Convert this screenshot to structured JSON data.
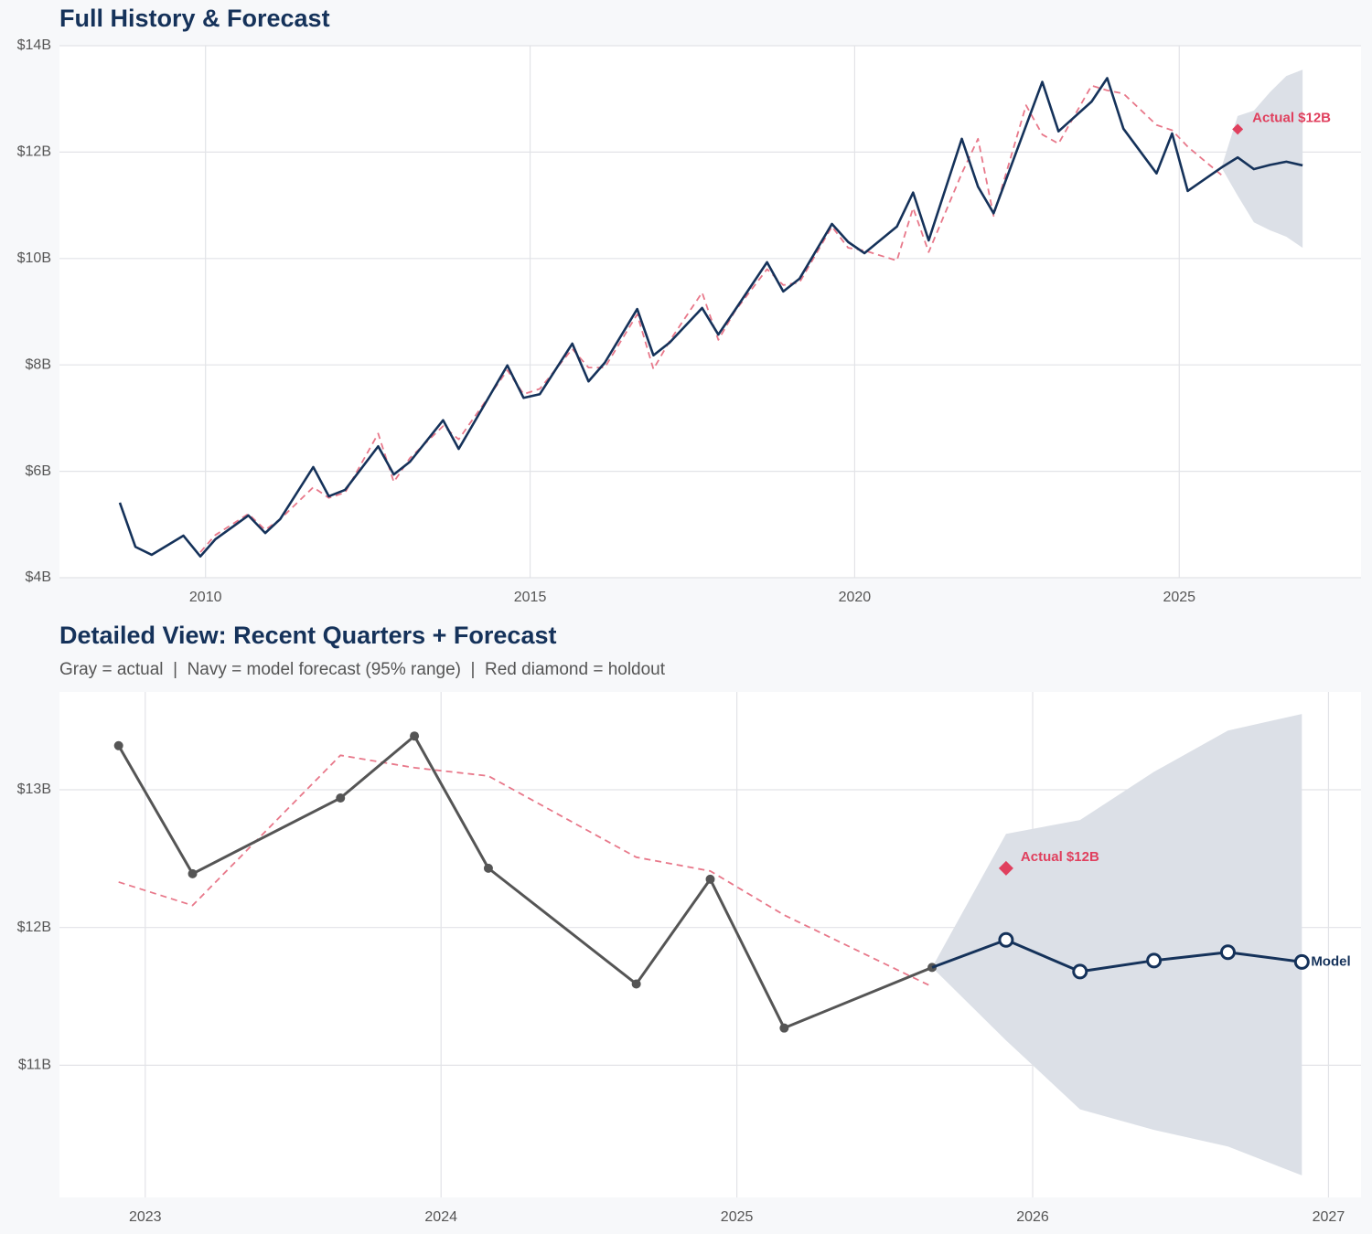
{
  "chart_data": [
    {
      "type": "line",
      "title": "Full History & Forecast",
      "xlim": [
        2007.75,
        2027.8
      ],
      "ylim": [
        4,
        14
      ],
      "xticks": [
        2010,
        2015,
        2020,
        2025
      ],
      "yticks": [
        {
          "value": 4,
          "label": "$4B"
        },
        {
          "value": 6,
          "label": "$6B"
        },
        {
          "value": 8,
          "label": "$8B"
        },
        {
          "value": 10,
          "label": "$10B"
        },
        {
          "value": 12,
          "label": "$12B"
        },
        {
          "value": 14,
          "label": "$14B"
        }
      ],
      "grid": true,
      "band": {
        "color": "#dce0e7",
        "x": [
          2025.65,
          2025.9,
          2026.15,
          2026.4,
          2026.65,
          2026.9
        ],
        "upper": [
          11.71,
          12.68,
          12.78,
          13.13,
          13.43,
          13.55
        ],
        "lower": [
          11.71,
          11.18,
          10.68,
          10.53,
          10.41,
          10.2
        ]
      },
      "series": [
        {
          "color": "#e8788a",
          "style": "dashed",
          "x": [
            2009.92,
            2010.15,
            2010.66,
            2010.92,
            2011.15,
            2011.66,
            2011.9,
            2012.15,
            2012.66,
            2012.9,
            2013.15,
            2013.66,
            2013.9,
            2014.65,
            2014.9,
            2015.15,
            2015.65,
            2015.9,
            2016.15,
            2016.65,
            2016.9,
            2017.15,
            2017.65,
            2017.9,
            2018.15,
            2018.65,
            2018.9,
            2019.15,
            2019.65,
            2019.9,
            2020.15,
            2020.65,
            2020.9,
            2021.14,
            2021.65,
            2021.9,
            2022.14,
            2022.64,
            2022.89,
            2023.14,
            2023.65,
            2023.89,
            2024.14,
            2024.65,
            2024.89,
            2025.14,
            2025.65
          ],
          "values": [
            4.48,
            4.8,
            5.2,
            4.9,
            5.1,
            5.7,
            5.5,
            5.6,
            6.71,
            5.8,
            6.25,
            6.85,
            6.6,
            7.9,
            7.45,
            7.55,
            8.3,
            7.95,
            7.95,
            8.95,
            7.92,
            8.45,
            9.36,
            8.47,
            9.0,
            9.8,
            9.5,
            9.55,
            10.6,
            10.2,
            10.15,
            9.96,
            10.95,
            10.12,
            11.6,
            12.25,
            10.8,
            12.88,
            12.33,
            12.16,
            13.25,
            13.16,
            13.1,
            12.51,
            12.41,
            12.09,
            11.57
          ]
        },
        {
          "color": "#15325a",
          "x": [
            2008.68,
            2008.92,
            2009.17,
            2009.66,
            2009.92,
            2010.15,
            2010.66,
            2010.92,
            2011.15,
            2011.66,
            2011.9,
            2012.15,
            2012.66,
            2012.9,
            2013.15,
            2013.66,
            2013.9,
            2014.65,
            2014.9,
            2015.15,
            2015.65,
            2015.9,
            2016.15,
            2016.65,
            2016.9,
            2017.15,
            2017.65,
            2017.9,
            2018.15,
            2018.65,
            2018.9,
            2019.15,
            2019.65,
            2019.9,
            2020.15,
            2020.65,
            2020.9,
            2021.14,
            2021.65,
            2021.9,
            2022.14,
            2022.89,
            2023.14,
            2023.65,
            2023.89,
            2024.14,
            2024.65,
            2024.89,
            2025.13,
            2025.65,
            2025.9,
            2026.15,
            2026.4,
            2026.65,
            2026.9
          ],
          "values": [
            5.41,
            4.58,
            4.43,
            4.79,
            4.4,
            4.72,
            5.17,
            4.84,
            5.1,
            6.08,
            5.53,
            5.65,
            6.47,
            5.94,
            6.18,
            6.96,
            6.42,
            7.99,
            7.38,
            7.45,
            8.4,
            7.69,
            8.04,
            9.05,
            8.18,
            8.42,
            9.07,
            8.57,
            9.02,
            9.93,
            9.38,
            9.62,
            10.65,
            10.31,
            10.1,
            10.6,
            11.24,
            10.34,
            12.25,
            11.35,
            10.85,
            13.32,
            12.39,
            12.95,
            13.39,
            12.44,
            11.6,
            12.35,
            11.27,
            11.71,
            11.9,
            11.68,
            11.76,
            11.82,
            11.75
          ]
        }
      ],
      "holdout": {
        "x": 2025.9,
        "value": 12.43,
        "label": "Actual $12B",
        "color": "#e0405e"
      }
    },
    {
      "type": "line",
      "title": "Detailed View: Recent Quarters + Forecast",
      "subtitle": "Gray = actual  |  Navy = model forecast (95% range)  |  Red diamond = holdout",
      "xlim": [
        2022.71,
        2027.11
      ],
      "ylim": [
        10.04,
        13.71
      ],
      "xticks": [
        2023,
        2024,
        2025,
        2026,
        2027
      ],
      "yticks": [
        {
          "value": 11,
          "label": "$11B"
        },
        {
          "value": 12,
          "label": "$12B"
        },
        {
          "value": 13,
          "label": "$13B"
        }
      ],
      "grid": true,
      "band": {
        "color": "#dce0e7",
        "x": [
          2025.66,
          2025.91,
          2026.16,
          2026.41,
          2026.66,
          2026.91
        ],
        "upper": [
          11.71,
          12.68,
          12.78,
          13.13,
          13.43,
          13.55
        ],
        "lower": [
          11.71,
          11.18,
          10.68,
          10.53,
          10.41,
          10.2
        ]
      },
      "series": [
        {
          "color": "#e8788a",
          "style": "dashed",
          "x": [
            2022.91,
            2023.16,
            2023.66,
            2023.91,
            2024.16,
            2024.66,
            2024.91,
            2025.16,
            2025.66
          ],
          "values": [
            12.33,
            12.16,
            13.25,
            13.16,
            13.1,
            12.51,
            12.41,
            12.09,
            11.57
          ]
        },
        {
          "color": "#555555",
          "marker": "filled",
          "x": [
            2022.91,
            2023.16,
            2023.66,
            2023.91,
            2024.16,
            2024.66,
            2024.91,
            2025.16,
            2025.66
          ],
          "values": [
            13.32,
            12.39,
            12.94,
            13.39,
            12.43,
            11.59,
            12.35,
            11.27,
            11.71
          ]
        },
        {
          "name": "Model",
          "color": "#15325a",
          "marker": "open",
          "x": [
            2025.91,
            2026.16,
            2026.41,
            2026.66,
            2026.91
          ],
          "values": [
            11.91,
            11.68,
            11.76,
            11.82,
            11.75
          ]
        }
      ],
      "holdout": {
        "x": 2025.91,
        "value": 12.43,
        "label": "Actual $12B",
        "color": "#e0405e"
      }
    }
  ]
}
